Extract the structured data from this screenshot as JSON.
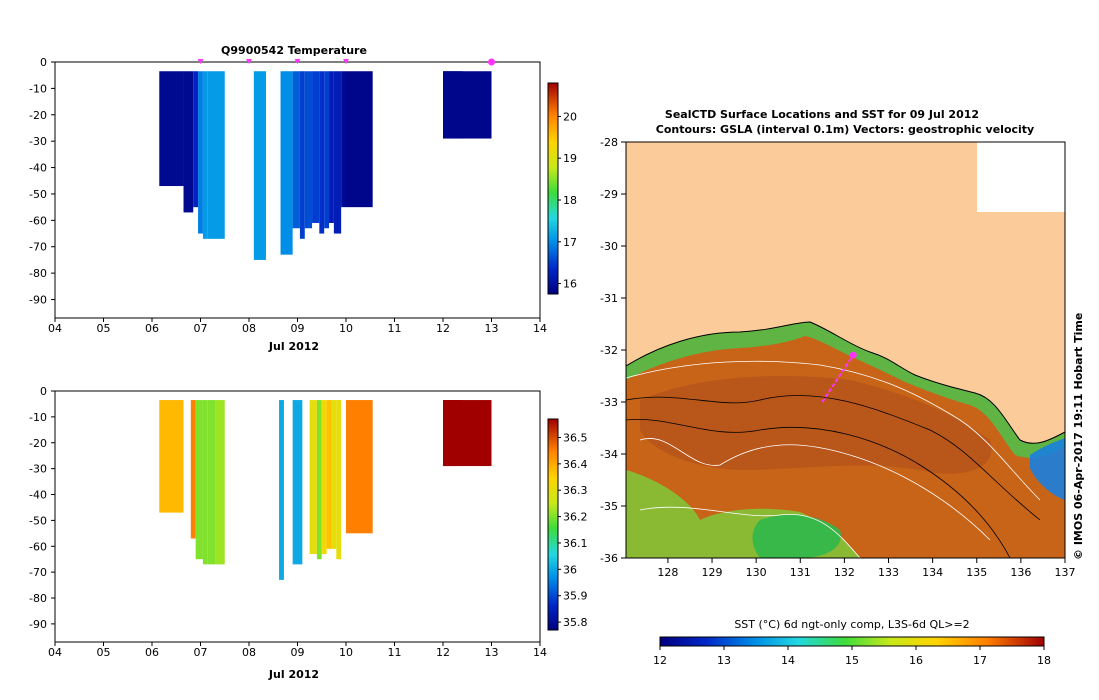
{
  "chart_data": [
    {
      "type": "heatmap",
      "title": "Q9900542  Temperature",
      "xlabel": "Jul 2012",
      "ylabel": "",
      "x_ticks": [
        "04",
        "05",
        "06",
        "07",
        "08",
        "09",
        "10",
        "11",
        "12",
        "13",
        "14"
      ],
      "y_ticks": [
        "0",
        "-10",
        "-20",
        "-30",
        "-40",
        "-50",
        "-60",
        "-70",
        "-80",
        "-90"
      ],
      "xlim": [
        4,
        14
      ],
      "ylim": [
        -97,
        0
      ],
      "colorbar": {
        "ticks": [
          "16",
          "17",
          "18",
          "19",
          "20"
        ],
        "range": [
          15.75,
          20.8
        ]
      },
      "profiles": [
        {
          "start": 6.15,
          "end": 6.65,
          "bottom": -47,
          "value": 15.9
        },
        {
          "start": 6.65,
          "end": 6.85,
          "bottom": -57,
          "value": 15.9
        },
        {
          "start": 6.85,
          "end": 6.95,
          "bottom": -55,
          "value": 16.3
        },
        {
          "start": 6.95,
          "end": 7.05,
          "bottom": -65,
          "value": 16.9
        },
        {
          "start": 7.05,
          "end": 7.15,
          "bottom": -67,
          "value": 17.1
        },
        {
          "start": 7.15,
          "end": 7.5,
          "bottom": -67,
          "value": 17.1
        },
        {
          "start": 8.1,
          "end": 8.35,
          "bottom": -75,
          "value": 17.1
        },
        {
          "start": 8.65,
          "end": 8.9,
          "bottom": -73,
          "value": 17.0
        },
        {
          "start": 8.9,
          "end": 9.05,
          "bottom": -63,
          "value": 16.7
        },
        {
          "start": 9.05,
          "end": 9.15,
          "bottom": -67,
          "value": 16.5
        },
        {
          "start": 9.15,
          "end": 9.3,
          "bottom": -63,
          "value": 16.6
        },
        {
          "start": 9.3,
          "end": 9.45,
          "bottom": -61,
          "value": 16.5
        },
        {
          "start": 9.45,
          "end": 9.55,
          "bottom": -65,
          "value": 16.4
        },
        {
          "start": 9.55,
          "end": 9.65,
          "bottom": -63,
          "value": 16.5
        },
        {
          "start": 9.65,
          "end": 9.75,
          "bottom": -61,
          "value": 16.2
        },
        {
          "start": 9.75,
          "end": 9.9,
          "bottom": -65,
          "value": 16.2
        },
        {
          "start": 9.9,
          "end": 10.0,
          "bottom": -55,
          "value": 15.9
        },
        {
          "start": 10.0,
          "end": 10.55,
          "bottom": -55,
          "value": 15.85
        },
        {
          "start": 12.0,
          "end": 13.0,
          "bottom": -29,
          "value": 15.85
        },
        {
          "start": 12.0,
          "end": 12.4,
          "bottom": -29,
          "value": 15.85
        }
      ],
      "station_markers": [
        7.0,
        8.0,
        9.0,
        10.0,
        13.0
      ]
    },
    {
      "type": "heatmap",
      "title": "",
      "xlabel": "Jul 2012",
      "ylabel": "",
      "x_ticks": [
        "04",
        "05",
        "06",
        "07",
        "08",
        "09",
        "10",
        "11",
        "12",
        "13",
        "14"
      ],
      "y_ticks": [
        "0",
        "-10",
        "-20",
        "-30",
        "-40",
        "-50",
        "-60",
        "-70",
        "-80",
        "-90"
      ],
      "xlim": [
        4,
        14
      ],
      "ylim": [
        -97,
        0
      ],
      "colorbar": {
        "ticks": [
          "35.8",
          "35.9",
          "36",
          "36.1",
          "36.2",
          "36.3",
          "36.4",
          "36.5"
        ],
        "range": [
          35.77,
          36.57
        ]
      },
      "profiles": [
        {
          "start": 6.15,
          "end": 6.65,
          "bottom": -47,
          "value": 36.38
        },
        {
          "start": 6.8,
          "end": 6.9,
          "bottom": -57,
          "value": 36.45
        },
        {
          "start": 6.9,
          "end": 7.05,
          "bottom": -65,
          "value": 36.2
        },
        {
          "start": 7.05,
          "end": 7.15,
          "bottom": -67,
          "value": 36.2
        },
        {
          "start": 7.15,
          "end": 7.3,
          "bottom": -67,
          "value": 36.2
        },
        {
          "start": 7.3,
          "end": 7.5,
          "bottom": -67,
          "value": 36.22
        },
        {
          "start": 8.62,
          "end": 8.72,
          "bottom": -73,
          "value": 36.0
        },
        {
          "start": 8.9,
          "end": 9.1,
          "bottom": -67,
          "value": 36.0
        },
        {
          "start": 9.25,
          "end": 9.4,
          "bottom": -63,
          "value": 36.3
        },
        {
          "start": 9.4,
          "end": 9.5,
          "bottom": -65,
          "value": 36.2
        },
        {
          "start": 9.5,
          "end": 9.6,
          "bottom": -63,
          "value": 36.32
        },
        {
          "start": 9.6,
          "end": 9.7,
          "bottom": -61,
          "value": 36.37
        },
        {
          "start": 9.7,
          "end": 9.8,
          "bottom": -61,
          "value": 36.3
        },
        {
          "start": 9.8,
          "end": 9.9,
          "bottom": -65,
          "value": 36.3
        },
        {
          "start": 10.0,
          "end": 10.55,
          "bottom": -55,
          "value": 36.45
        },
        {
          "start": 12.0,
          "end": 13.0,
          "bottom": -29,
          "value": 36.57
        },
        {
          "start": 12.0,
          "end": 12.4,
          "bottom": -29,
          "value": 36.57
        }
      ]
    },
    {
      "type": "heatmap",
      "title_line1": "SealCTD Surface Locations and SST for 09 Jul 2012",
      "title_line2": "Contours: GSLA (interval 0.1m) Vectors: geostrophic velocity",
      "x_ticks": [
        "128",
        "129",
        "130",
        "131",
        "132",
        "133",
        "134",
        "135",
        "136",
        "137"
      ],
      "y_ticks": [
        "-28",
        "-29",
        "-30",
        "-31",
        "-32",
        "-33",
        "-34",
        "-35",
        "-36"
      ],
      "xlim": [
        127.05,
        137.0
      ],
      "ylim": [
        -36,
        -28
      ],
      "colorbar": {
        "label": "SST (°C) 6d ngt-only comp, L3S-6d QL>=2",
        "ticks": [
          "12",
          "13",
          "14",
          "15",
          "16",
          "17",
          "18"
        ],
        "range": [
          12,
          18
        ]
      },
      "side_label": "© IMOS 06-Apr-2017 19:11 Hobart Time",
      "track": [
        [
          131.5,
          -33.0
        ],
        [
          132.2,
          -32.1
        ]
      ],
      "track_end": [
        132.2,
        -32.1
      ]
    }
  ],
  "colors": {
    "land": "#fbcb9a",
    "track": "#ff33ff",
    "ocean_warm": "#c86418",
    "ocean_cool": "#4cc24c"
  }
}
